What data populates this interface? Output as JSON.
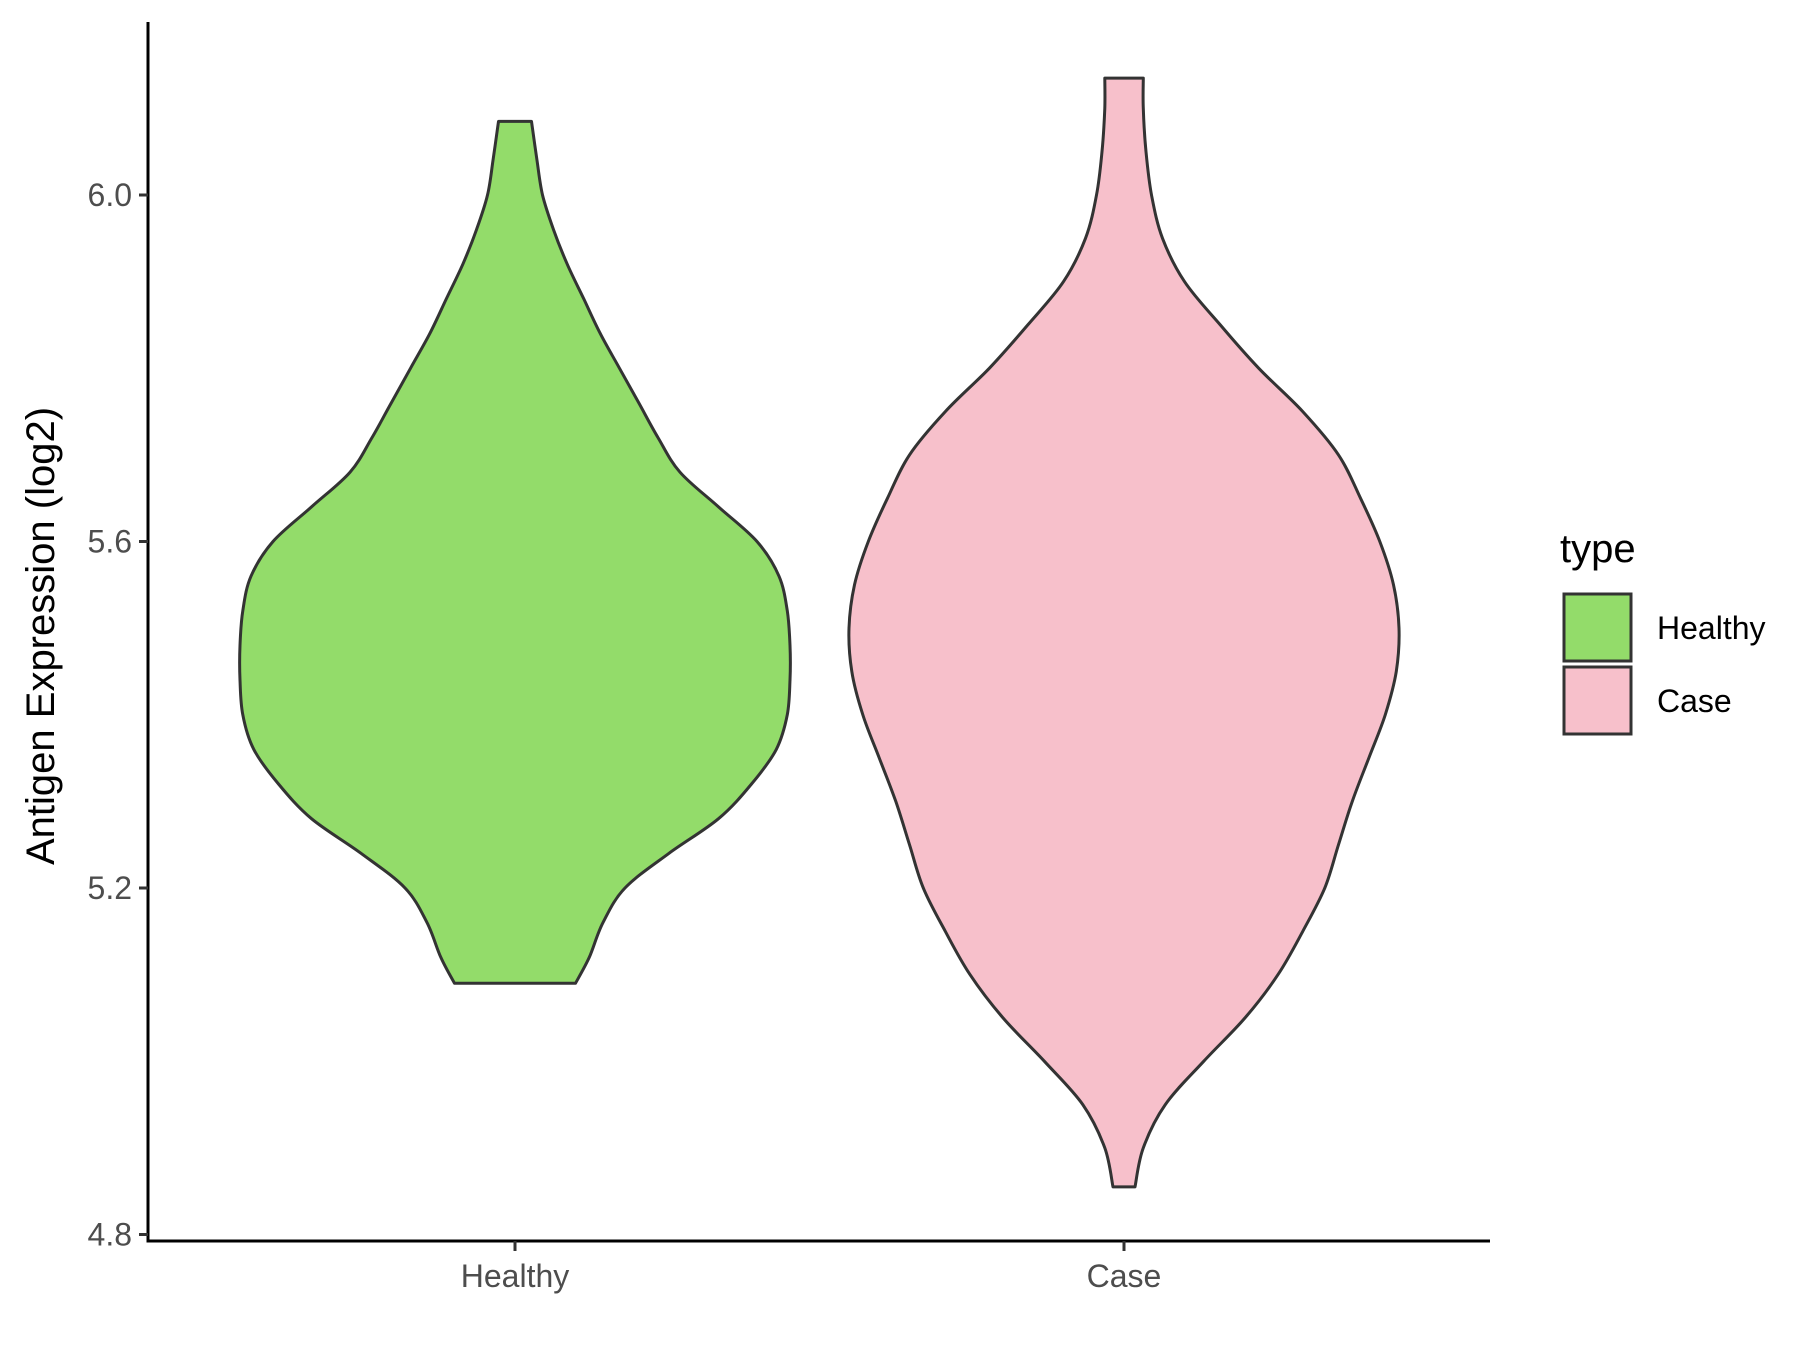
{
  "chart_data": {
    "type": "violin",
    "title": "",
    "xlabel": "",
    "ylabel": "Antigen Expression (log2)",
    "ylim": [
      4.8,
      6.2
    ],
    "yticks": [
      "4.8",
      "5.2",
      "5.6",
      "6.0"
    ],
    "categories": [
      "Healthy",
      "Case"
    ],
    "grid": false,
    "legend": {
      "title": "type",
      "position": "right",
      "entries": [
        {
          "label": "Healthy",
          "color": "#93DC6A"
        },
        {
          "label": "Case",
          "color": "#F7C0CB"
        }
      ]
    },
    "series": [
      {
        "name": "Healthy",
        "color": "#93DC6A",
        "min": 5.09,
        "max": 6.085,
        "density_profile": [
          [
            5.09,
            0.22
          ],
          [
            5.12,
            0.27
          ],
          [
            5.16,
            0.32
          ],
          [
            5.2,
            0.4
          ],
          [
            5.24,
            0.56
          ],
          [
            5.28,
            0.74
          ],
          [
            5.32,
            0.86
          ],
          [
            5.36,
            0.95
          ],
          [
            5.4,
            0.99
          ],
          [
            5.44,
            1.0
          ],
          [
            5.48,
            1.0
          ],
          [
            5.52,
            0.99
          ],
          [
            5.56,
            0.96
          ],
          [
            5.6,
            0.88
          ],
          [
            5.64,
            0.74
          ],
          [
            5.68,
            0.6
          ],
          [
            5.72,
            0.52
          ],
          [
            5.76,
            0.45
          ],
          [
            5.8,
            0.38
          ],
          [
            5.84,
            0.31
          ],
          [
            5.88,
            0.25
          ],
          [
            5.92,
            0.19
          ],
          [
            5.96,
            0.14
          ],
          [
            6.0,
            0.1
          ],
          [
            6.04,
            0.08
          ],
          [
            6.085,
            0.06
          ]
        ]
      },
      {
        "name": "Case",
        "color": "#F7C0CB",
        "min": 4.855,
        "max": 6.135,
        "density_profile": [
          [
            4.855,
            0.04
          ],
          [
            4.9,
            0.07
          ],
          [
            4.95,
            0.15
          ],
          [
            5.0,
            0.29
          ],
          [
            5.05,
            0.44
          ],
          [
            5.1,
            0.56
          ],
          [
            5.15,
            0.65
          ],
          [
            5.2,
            0.73
          ],
          [
            5.25,
            0.78
          ],
          [
            5.3,
            0.83
          ],
          [
            5.35,
            0.89
          ],
          [
            5.4,
            0.95
          ],
          [
            5.45,
            0.99
          ],
          [
            5.5,
            1.0
          ],
          [
            5.55,
            0.98
          ],
          [
            5.6,
            0.93
          ],
          [
            5.65,
            0.86
          ],
          [
            5.7,
            0.78
          ],
          [
            5.75,
            0.65
          ],
          [
            5.8,
            0.49
          ],
          [
            5.85,
            0.35
          ],
          [
            5.9,
            0.22
          ],
          [
            5.95,
            0.14
          ],
          [
            6.0,
            0.1
          ],
          [
            6.05,
            0.08
          ],
          [
            6.1,
            0.07
          ],
          [
            6.135,
            0.07
          ]
        ]
      }
    ]
  }
}
